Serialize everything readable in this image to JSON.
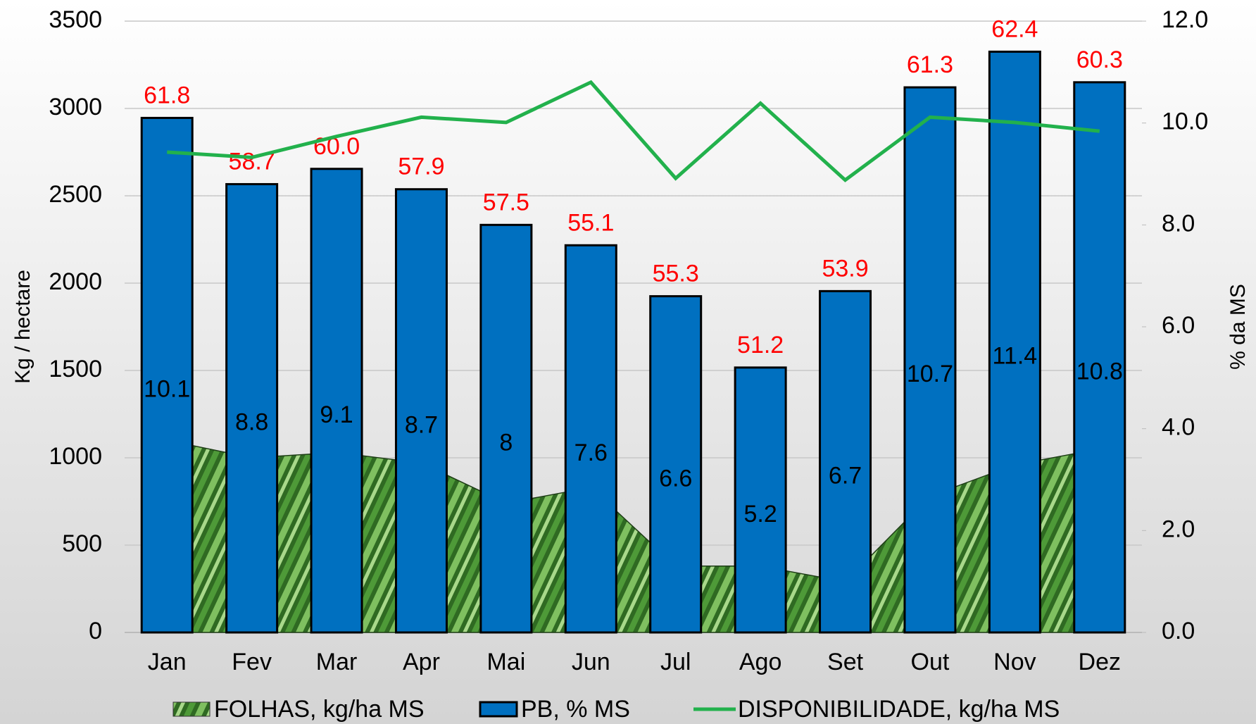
{
  "chart_data": {
    "type": "combo",
    "categories": [
      "Jan",
      "Fev",
      "Mar",
      "Apr",
      "Mai",
      "Jun",
      "Jul",
      "Ago",
      "Set",
      "Out",
      "Nov",
      "Dez"
    ],
    "series": [
      {
        "name": "FOLHAS, kg/ha MS",
        "type": "area",
        "color": "#3f7f2f",
        "values": [
          1100,
          1000,
          1030,
          970,
          740,
          830,
          380,
          380,
          290,
          780,
          960,
          1050
        ]
      },
      {
        "name": "PB, % MS",
        "type": "bar",
        "axis": "y2",
        "color": "#0070c0",
        "values": [
          10.1,
          8.8,
          9.1,
          8.7,
          8.0,
          7.6,
          6.6,
          5.2,
          6.7,
          10.7,
          11.4,
          10.8
        ]
      },
      {
        "name": "DISPONIBILIDADE, kg/ha MS",
        "type": "line",
        "color": "#22b14c",
        "values": [
          2750,
          2720,
          2840,
          2950,
          2920,
          3150,
          2600,
          3030,
          2590,
          2950,
          2920,
          2870
        ]
      }
    ],
    "top_labels": {
      "color": "#ff0000",
      "values": [
        61.8,
        58.7,
        60.0,
        57.9,
        57.5,
        55.1,
        55.3,
        51.2,
        53.9,
        61.3,
        62.4,
        60.3
      ],
      "value_labels": [
        "61.8",
        "58.7",
        "60.0",
        "57.9",
        "57.5",
        "55.1",
        "55.3",
        "51.2",
        "53.9",
        "61.3",
        "62.4",
        "60.3"
      ]
    },
    "ylabel": "Kg / hectare",
    "y2label": "% da MS",
    "ylim": [
      0,
      3500
    ],
    "yticks": [
      0,
      500,
      1000,
      1500,
      2000,
      2500,
      3000,
      3500
    ],
    "y2lim": [
      0,
      12
    ],
    "y2ticks": [
      {
        "value": 0,
        "label": "0.0"
      },
      {
        "value": 2,
        "label": "2.0"
      },
      {
        "value": 4,
        "label": "4.0"
      },
      {
        "value": 6,
        "label": "6.0"
      },
      {
        "value": 8,
        "label": "8.0"
      },
      {
        "value": 10,
        "label": "10.0"
      },
      {
        "value": 12,
        "label": "12.0"
      }
    ],
    "grid": true,
    "legend": "bottom"
  }
}
